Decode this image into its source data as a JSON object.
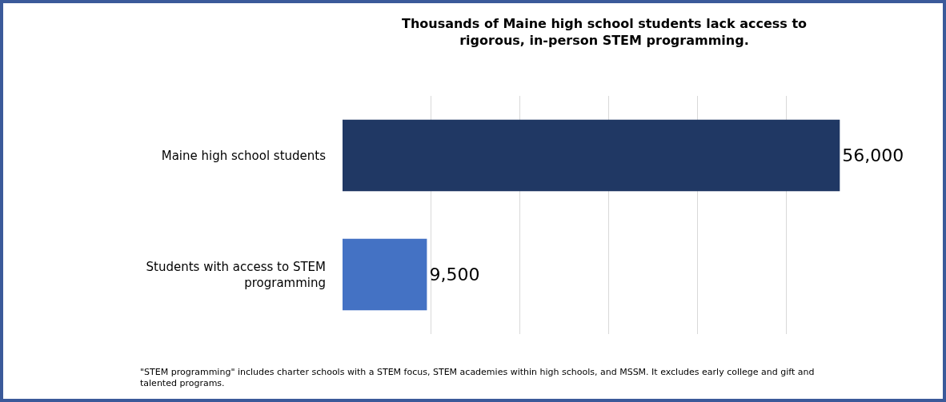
{
  "chart_data": {
    "type": "bar",
    "orientation": "horizontal",
    "title": "Thousands of Maine high school students lack access to rigorous, in-person STEM programming.",
    "categories": [
      "Maine high school students",
      "Students with access to STEM programming"
    ],
    "values": [
      56000,
      9500
    ],
    "colors": [
      "#203864",
      "#4472c4"
    ],
    "value_labels": [
      "56,000",
      "9,500"
    ],
    "grid": "x",
    "legend": false,
    "tick_labels": "y",
    "annotations": [
      "\"STEM programming\" includes charter schools with a STEM focus, STEM academies within high schools, and MSSM. It excludes early college and gift and talented programs."
    ]
  }
}
